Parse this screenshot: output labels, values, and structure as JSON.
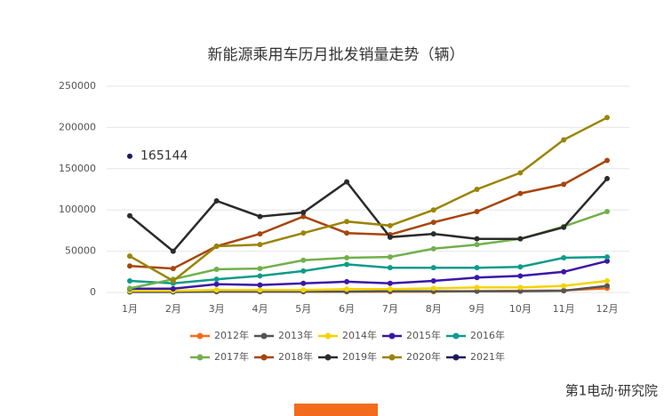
{
  "chart_data": {
    "type": "line",
    "title": "新能源乘用车历月批发销量走势（辆）",
    "categories": [
      "1月",
      "2月",
      "3月",
      "4月",
      "5月",
      "6月",
      "7月",
      "8月",
      "9月",
      "10月",
      "11月",
      "12月"
    ],
    "ylim": [
      0,
      250000
    ],
    "yticks": [
      0,
      50000,
      100000,
      150000,
      200000,
      250000
    ],
    "grid": true,
    "legend": "bottom",
    "series": [
      {
        "name": "2012年",
        "color": "#f26b1d",
        "values": [
          1000,
          1000,
          1000,
          1000,
          1000,
          1000,
          1000,
          1000,
          1500,
          2000,
          2500,
          5000
        ]
      },
      {
        "name": "2013年",
        "color": "#555555",
        "values": [
          500,
          500,
          1000,
          1000,
          1000,
          1000,
          1500,
          1500,
          1500,
          1500,
          2000,
          8000
        ]
      },
      {
        "name": "2014年",
        "color": "#f5d300",
        "values": [
          2000,
          2000,
          3000,
          3000,
          3000,
          4000,
          4000,
          5000,
          6000,
          6000,
          8000,
          14000
        ]
      },
      {
        "name": "2015年",
        "color": "#3a17a8",
        "values": [
          4500,
          4500,
          10000,
          9000,
          11000,
          13000,
          11000,
          14000,
          18000,
          20000,
          25000,
          38000
        ]
      },
      {
        "name": "2016年",
        "color": "#0f9b8a",
        "values": [
          14000,
          11000,
          16000,
          20000,
          26000,
          34000,
          30000,
          30000,
          30000,
          31000,
          42000,
          43000
        ]
      },
      {
        "name": "2017年",
        "color": "#72b04b",
        "values": [
          5000,
          16000,
          28000,
          29000,
          39000,
          42000,
          43000,
          53000,
          58000,
          65000,
          80000,
          98000
        ]
      },
      {
        "name": "2018年",
        "color": "#a8450c",
        "values": [
          32000,
          29000,
          56000,
          71000,
          92000,
          72000,
          70000,
          85000,
          98000,
          120000,
          131000,
          160000
        ]
      },
      {
        "name": "2019年",
        "color": "#2b2b2b",
        "values": [
          93000,
          50000,
          111000,
          92000,
          97000,
          134000,
          67000,
          71000,
          65000,
          65000,
          79000,
          138000
        ]
      },
      {
        "name": "2020年",
        "color": "#9a8406",
        "values": [
          44000,
          14000,
          56000,
          58000,
          72000,
          86000,
          81000,
          100000,
          125000,
          145000,
          185000,
          212000
        ]
      },
      {
        "name": "2021年",
        "color": "#1c1a5e",
        "values": [
          165144,
          null,
          null,
          null,
          null,
          null,
          null,
          null,
          null,
          null,
          null,
          null
        ]
      }
    ],
    "logo_text": "第1电动·研究院"
  }
}
